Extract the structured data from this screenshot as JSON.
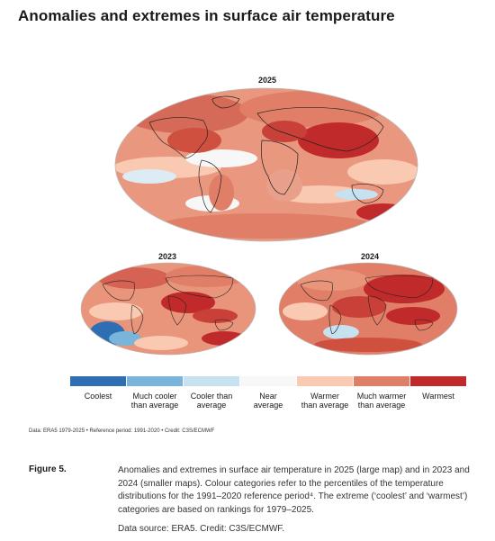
{
  "page": {
    "title": "Anomalies and extremes in surface air temperature"
  },
  "maps": {
    "main": {
      "label": "2025"
    },
    "left": {
      "label": "2023"
    },
    "right": {
      "label": "2024"
    }
  },
  "legend": {
    "items": [
      {
        "line1": "Coolest",
        "line2": "",
        "color": "#2e6fb4"
      },
      {
        "line1": "Much cooler",
        "line2": "than average",
        "color": "#79b4db"
      },
      {
        "line1": "Cooler than",
        "line2": "average",
        "color": "#c6e1ef"
      },
      {
        "line1": "Near",
        "line2": "average",
        "color": "#f7f7f7"
      },
      {
        "line1": "Warmer",
        "line2": "than average",
        "color": "#f9c9b1"
      },
      {
        "line1": "Much warmer",
        "line2": "than average",
        "color": "#e07e67"
      },
      {
        "line1": "Warmest",
        "line2": "",
        "color": "#c02a2a"
      }
    ]
  },
  "source_note": "Data: ERA5 1979-2025 • Reference period: 1991-2020 • Credit: C3S/ECMWF",
  "figure": {
    "label": "Figure 5.",
    "caption": "Anomalies and extremes in surface air temperature in 2025 (large map) and in 2023 and 2024 (smaller maps). Colour categories refer to the percentiles of the temperature distributions for the 1991–2020 reference period⁴. The extreme (‘coolest’ and ‘warmest’) categories are based on rankings for 1979–2025.",
    "credit": "Data source: ERA5. Credit: C3S/ECMWF."
  }
}
